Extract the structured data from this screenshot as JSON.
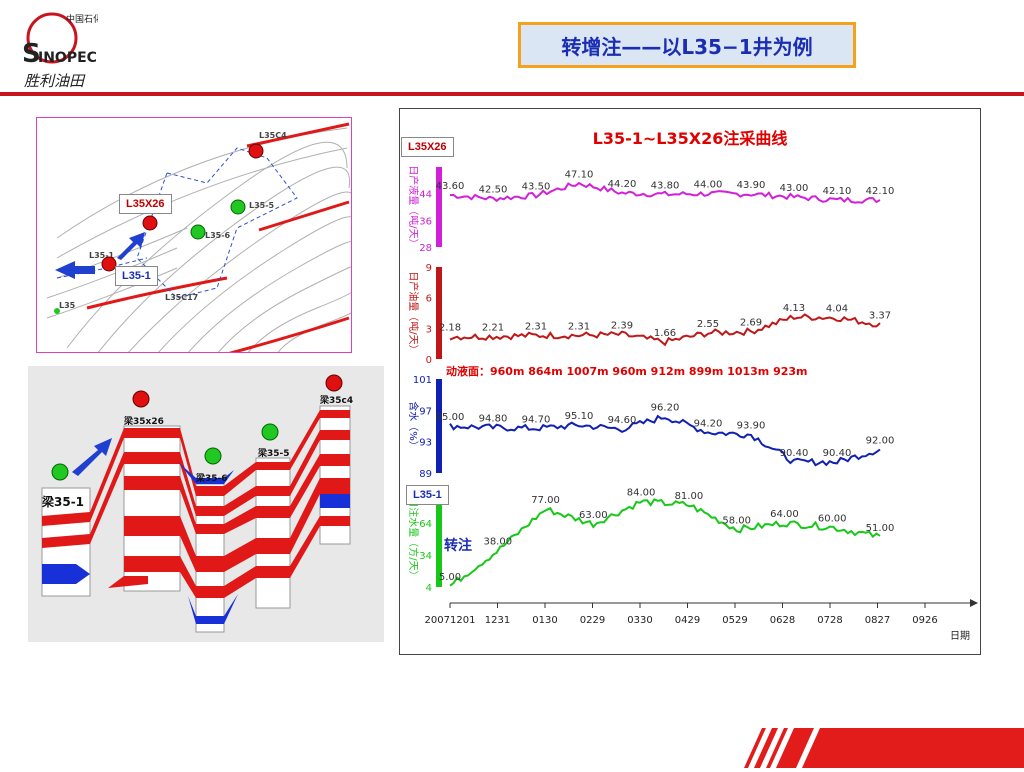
{
  "header": {
    "title": "转增注——以L35−1井为例",
    "logo_text": "中国石化 SINOPEC 胜利油田"
  },
  "map": {
    "labels": [
      "L35C4",
      "L35-5",
      "L35-6",
      "L35-1",
      "L35C17",
      "L35",
      "L35X26"
    ],
    "callouts": {
      "top": "L35X26",
      "bottom": "L35-1"
    }
  },
  "section": {
    "wells": [
      "梁35-1",
      "梁35x26",
      "梁35-6",
      "梁35-5",
      "梁35c4"
    ]
  },
  "chart_data": {
    "type": "line",
    "title": "L35-1~L35X26注采曲线",
    "x_ticks": [
      "20071201",
      "1231",
      "0130",
      "0229",
      "0330",
      "0429",
      "0529",
      "0628",
      "0728",
      "0827",
      "0926"
    ],
    "x_label": "日期",
    "annotation_depth": "动液面：960m   864m   1007m   960m    912m    899m   1013m   923m",
    "annotation_inj": "转注",
    "tag_top": "L35X26",
    "tag_bottom": "L35-1",
    "panels": [
      {
        "name": "daily_liquid",
        "ylabel": "日产液量（吨/天）",
        "color": "#d020d8",
        "ylim": [
          28,
          52
        ],
        "yticks": [
          28,
          36,
          44
        ],
        "values": [
          43.6,
          42.5,
          43.5,
          47.1,
          44.2,
          43.8,
          44.0,
          43.9,
          43.0,
          42.1,
          42.1
        ],
        "labels": [
          "43.60",
          "42.50",
          "43.50",
          "47.10",
          "44.20",
          "43.80",
          "44.00",
          "43.90",
          "43.00",
          "42.10",
          "42.10"
        ]
      },
      {
        "name": "daily_oil",
        "ylabel": "日产油量（吨/天）",
        "color": "#c01818",
        "ylim": [
          0,
          9
        ],
        "yticks": [
          0,
          3,
          6,
          9
        ],
        "values": [
          2.18,
          2.21,
          2.31,
          2.31,
          2.39,
          1.66,
          2.55,
          2.69,
          4.13,
          4.04,
          3.37
        ],
        "labels": [
          "2.18",
          "2.21",
          "2.31",
          "2.31",
          "2.39",
          "1.66",
          "2.55",
          "2.69",
          "4.13",
          "4.04",
          "3.37"
        ]
      },
      {
        "name": "water_cut",
        "ylabel": "含水（%）",
        "color": "#1020b0",
        "ylim": [
          89,
          101
        ],
        "yticks": [
          89,
          93,
          97,
          101
        ],
        "values": [
          95.0,
          94.8,
          94.7,
          95.1,
          94.6,
          96.2,
          94.2,
          93.9,
          90.4,
          90.4,
          92.0
        ],
        "labels": [
          "95.00",
          "94.80",
          "94.70",
          "95.10",
          "94.60",
          "96.20",
          "94.20",
          "93.90",
          "90.40",
          "90.40",
          "92.00"
        ]
      },
      {
        "name": "daily_water_injection",
        "ylabel": "日注水量（方/天）",
        "color": "#18c818",
        "ylim": [
          4,
          94
        ],
        "yticks": [
          4,
          34,
          64
        ],
        "values": [
          5.0,
          38.0,
          77.0,
          63.0,
          84.0,
          81.0,
          58.0,
          64.0,
          60.0,
          51.0
        ],
        "labels": [
          "5.00",
          "38.00",
          "77.00",
          "63.00",
          "84.00",
          "81.00",
          "58.00",
          "64.00",
          "60.00",
          "51.00"
        ]
      }
    ]
  }
}
